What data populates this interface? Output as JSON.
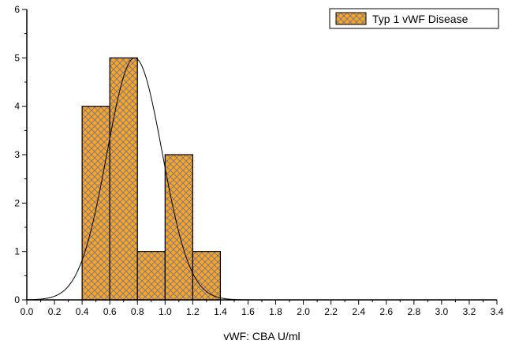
{
  "chart_data": {
    "type": "bar",
    "subtype": "histogram",
    "xlabel": "vWF: CBA U/ml",
    "ylabel": "",
    "xlim": [
      0.0,
      3.4
    ],
    "ylim": [
      0,
      6
    ],
    "x_ticks": [
      "0.0",
      "0.2",
      "0.4",
      "0.6",
      "0.8",
      "1.0",
      "1.2",
      "1.4",
      "1.6",
      "1.8",
      "2.0",
      "2.2",
      "2.4",
      "2.6",
      "2.8",
      "3.0",
      "3.2",
      "3.4"
    ],
    "y_ticks": [
      "0",
      "1",
      "2",
      "3",
      "4",
      "5",
      "6"
    ],
    "bin_width": 0.2,
    "series": [
      {
        "name": "Typ 1 vWF Disease",
        "bins": [
          {
            "start": 0.4,
            "end": 0.6,
            "count": 4
          },
          {
            "start": 0.6,
            "end": 0.8,
            "count": 5
          },
          {
            "start": 0.8,
            "end": 1.0,
            "count": 1
          },
          {
            "start": 1.0,
            "end": 1.2,
            "count": 3
          },
          {
            "start": 1.2,
            "end": 1.4,
            "count": 1
          }
        ],
        "fill_color": "#F5A623",
        "pattern": "crosshatch",
        "pattern_color": "#6E6E9E"
      }
    ],
    "normal_curve": {
      "mean": 0.78,
      "peak": 5.0,
      "sd": 0.2,
      "x_range": [
        0.0,
        1.6
      ]
    },
    "legend": {
      "position": "top-right",
      "entries": [
        "Typ 1 vWF Disease"
      ]
    },
    "grid": false
  }
}
